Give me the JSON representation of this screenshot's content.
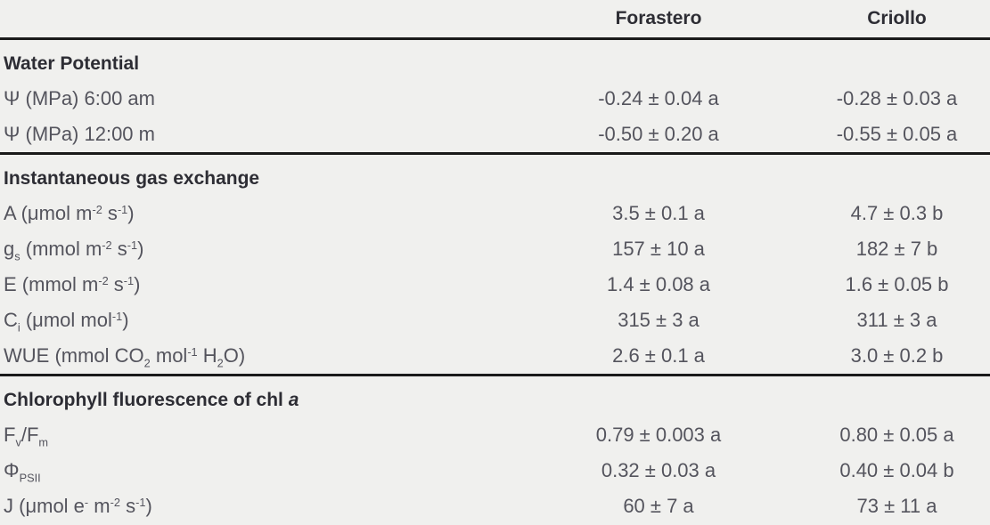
{
  "table": {
    "header": {
      "forastero": "Forastero",
      "criollo": "Criollo"
    },
    "sections": [
      {
        "title_html": "Water Potential",
        "rows": [
          {
            "label_html": "&#936; (MPa) 6:00 am",
            "forastero": "-0.24 &#177; 0.04 a",
            "criollo": "-0.28 &#177; 0.03 a"
          },
          {
            "label_html": "&#936; (MPa) 12:00 m",
            "forastero": "-0.50 &#177; 0.20 a",
            "criollo": "-0.55 &#177; 0.05 a"
          }
        ]
      },
      {
        "title_html": "Instantaneous gas exchange",
        "rows": [
          {
            "label_html": "A (&#956;mol m<sup>-2</sup> s<sup>-1</sup>)",
            "forastero": "3.5 &#177; 0.1 a",
            "criollo": "4.7 &#177; 0.3 b"
          },
          {
            "label_html": "g<sub>s</sub> (mmol m<sup>-2</sup> s<sup>-1</sup>)",
            "forastero": "157 &#177;  10 a",
            "criollo": "182 &#177; 7 b"
          },
          {
            "label_html": "E (mmol m<sup>-2</sup> s<sup>-1</sup>)",
            "forastero": "1.4 &#177; 0.08 a",
            "criollo": "1.6 &#177; 0.05 b"
          },
          {
            "label_html": "C<sub>i</sub> (&#956;mol mol<sup>-1</sup>)",
            "forastero": "315 &#177; 3 a",
            "criollo": "311 &#177; 3 a"
          },
          {
            "label_html": "WUE (mmol CO<sub>2</sub> mol<sup>-1</sup> H<sub>2</sub>O)",
            "forastero": "2.6 &#177; 0.1 a",
            "criollo": "3.0 &#177; 0.2 b"
          }
        ]
      },
      {
        "title_html": "Chlorophyll fluorescence of chl <i>a</i>",
        "rows": [
          {
            "label_html": "F<sub>v</sub>/F<sub>m</sub>",
            "forastero": "0.79 &#177; 0.003 a",
            "criollo": "0.80 &#177; 0.05 a"
          },
          {
            "label_html": "&#934;<sub>PSII</sub>",
            "forastero": "0.32 &#177; 0.03 a",
            "criollo": "0.40 &#177; 0.04 b"
          },
          {
            "label_html": "J (&#956;mol e<sup>-</sup> m<sup>-2</sup> s<sup>-1</sup>)",
            "forastero": "60 &#177; 7 a",
            "criollo": "73 &#177; 11 a"
          }
        ]
      }
    ]
  }
}
